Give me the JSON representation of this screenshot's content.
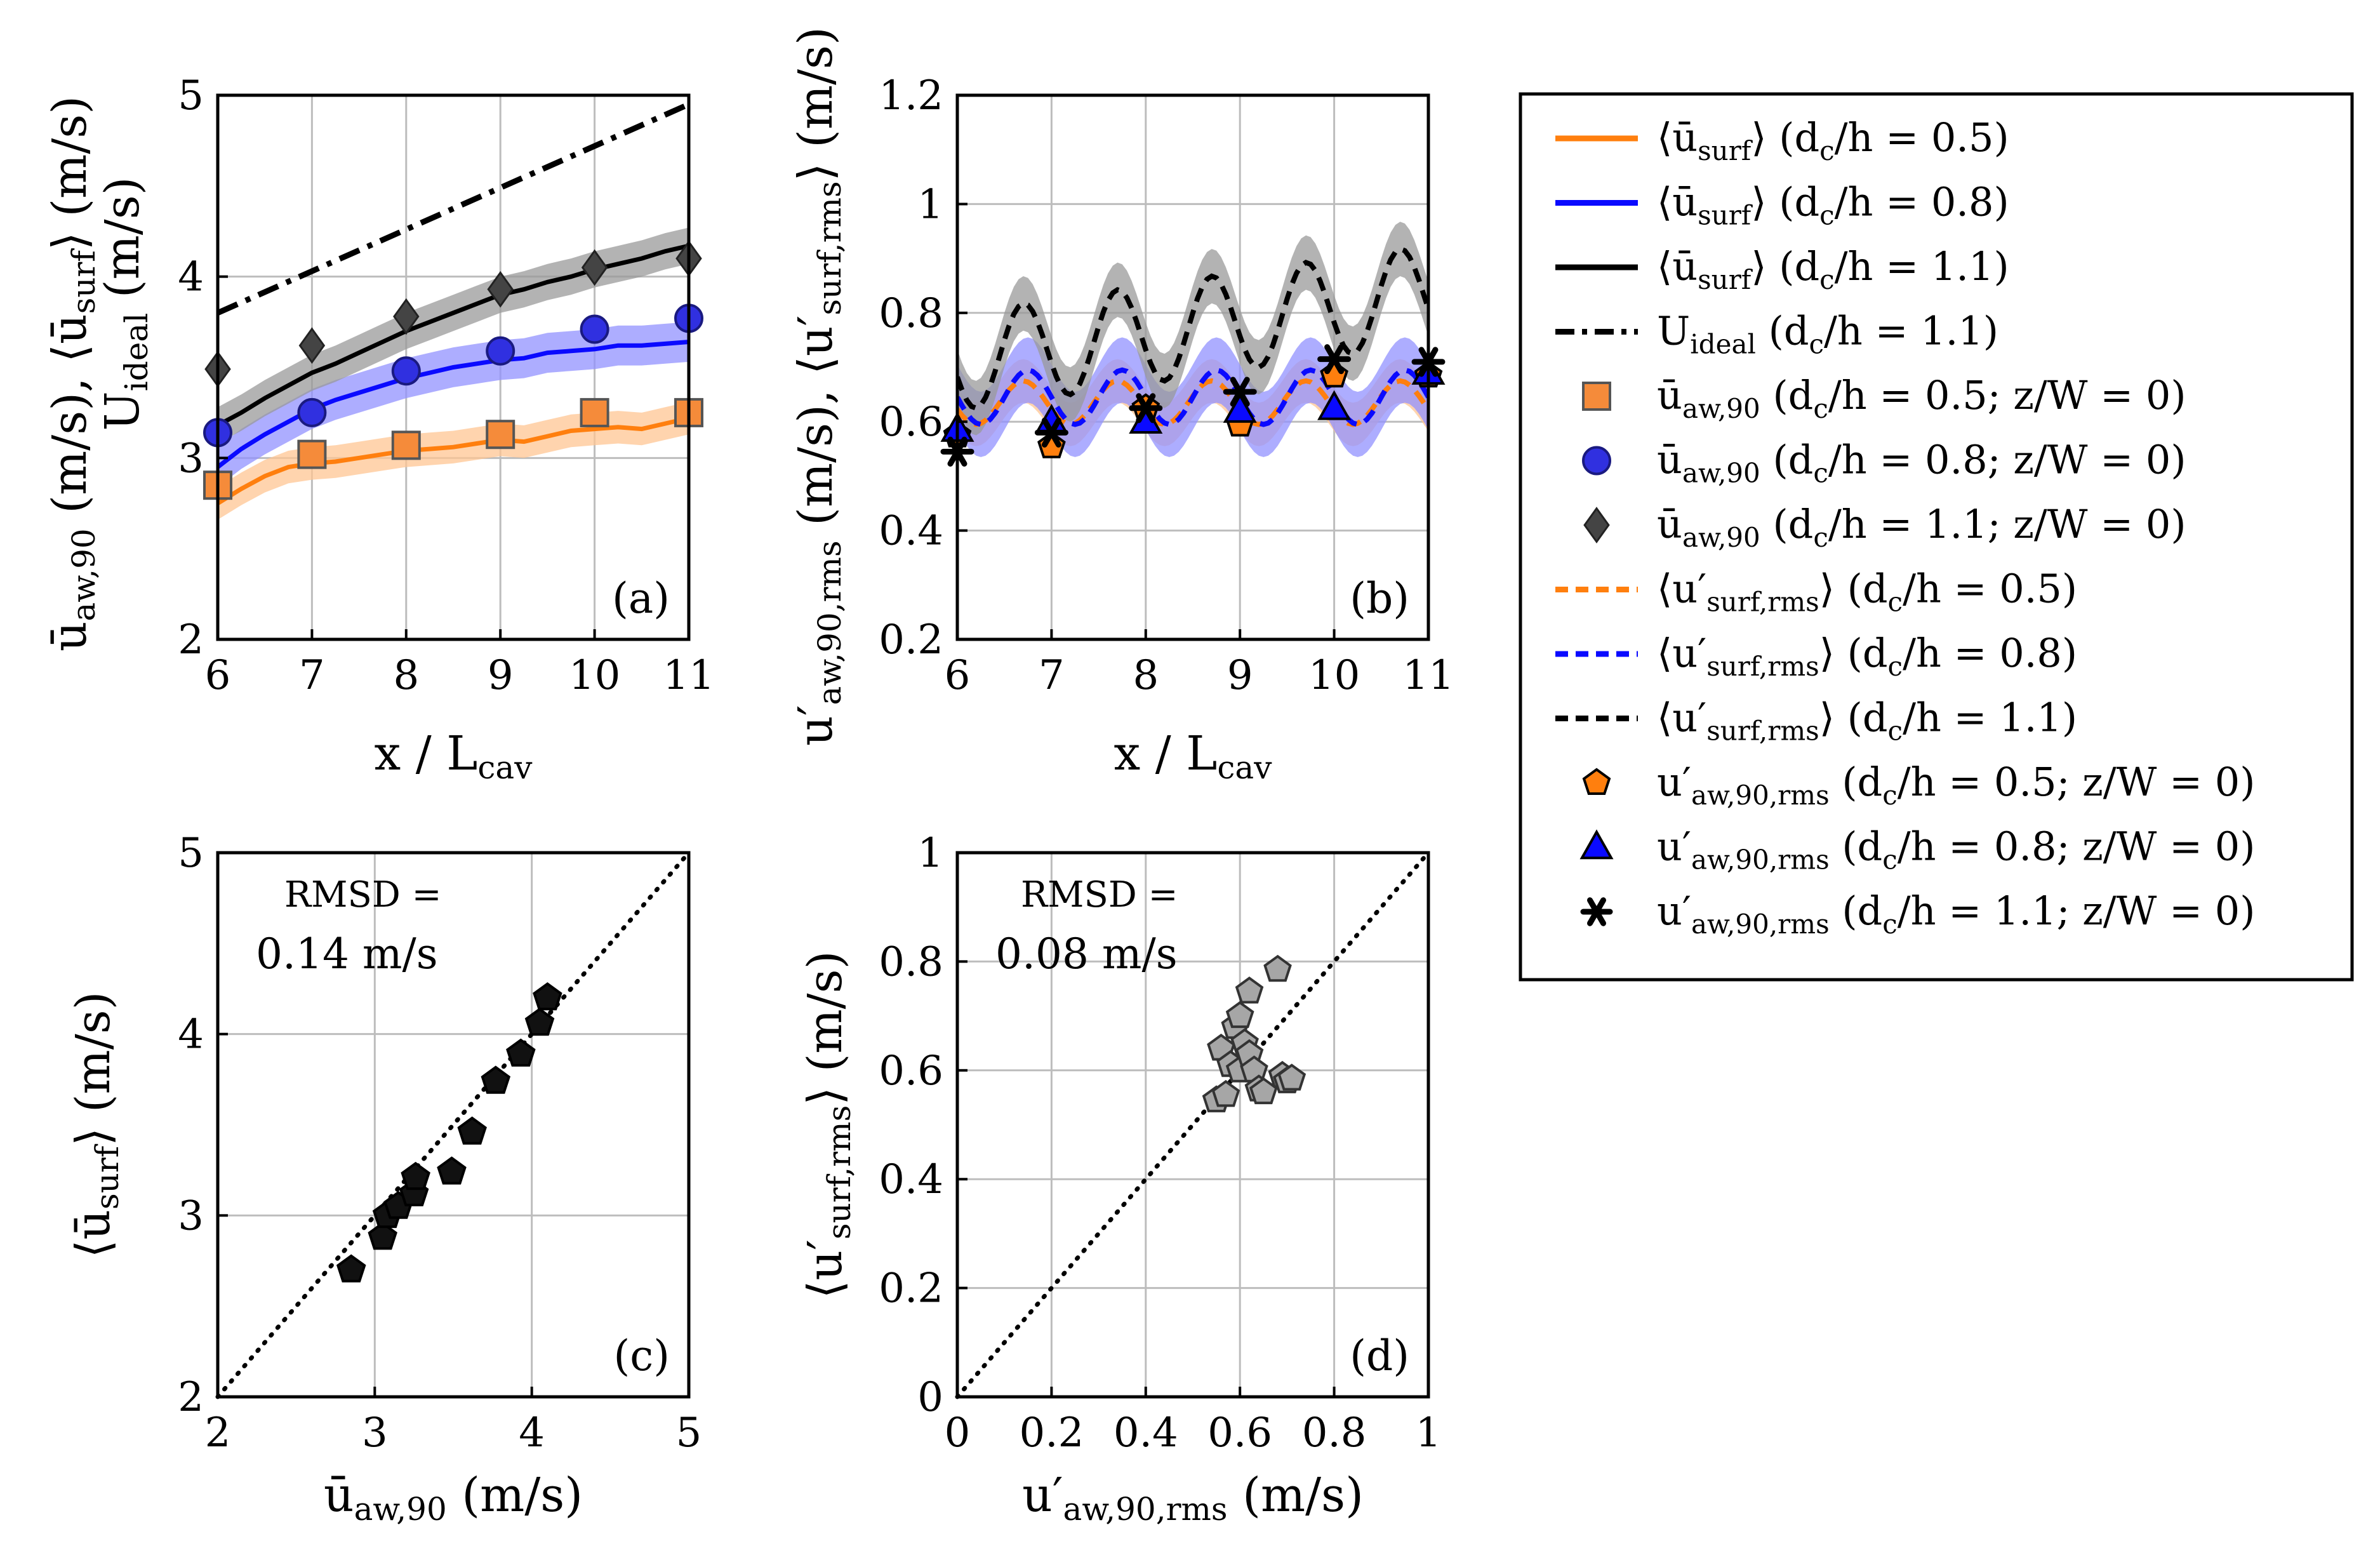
{
  "chart_data": [
    {
      "panel": "a",
      "type": "line",
      "xlabel": "x / L_cav",
      "ylabel_line1": "ū_aw,90 (m/s), ⟨ū_surf⟩ (m/s)",
      "ylabel_line2": "U_ideal (m/s)",
      "xlim": [
        6,
        11
      ],
      "ylim": [
        2,
        5
      ],
      "xticks": [
        "6",
        "7",
        "8",
        "9",
        "10",
        "11"
      ],
      "yticks": [
        "2",
        "3",
        "4",
        "5"
      ],
      "grid": true,
      "series": [
        {
          "name": "⟨ū_surf⟩ (d_c/h = 0.5)",
          "style": "line",
          "color": "#ff7f0e",
          "x": [
            6,
            6.25,
            6.5,
            6.75,
            7,
            7.25,
            7.5,
            7.75,
            8,
            8.25,
            8.5,
            8.75,
            9,
            9.25,
            9.5,
            9.75,
            10,
            10.25,
            10.5,
            10.75,
            11
          ],
          "y": [
            2.75,
            2.83,
            2.9,
            2.95,
            2.97,
            2.98,
            3.0,
            3.02,
            3.04,
            3.05,
            3.06,
            3.08,
            3.1,
            3.09,
            3.12,
            3.15,
            3.16,
            3.17,
            3.16,
            3.19,
            3.22
          ],
          "band": 0.09
        },
        {
          "name": "⟨ū_surf⟩ (d_c/h = 0.8)",
          "style": "line",
          "color": "#0a0aff",
          "x": [
            6,
            6.25,
            6.5,
            6.75,
            7,
            7.25,
            7.5,
            7.75,
            8,
            8.25,
            8.5,
            8.75,
            9,
            9.25,
            9.5,
            9.75,
            10,
            10.25,
            10.5,
            10.75,
            11
          ],
          "y": [
            2.95,
            3.05,
            3.13,
            3.2,
            3.27,
            3.32,
            3.36,
            3.4,
            3.44,
            3.47,
            3.5,
            3.52,
            3.54,
            3.55,
            3.58,
            3.59,
            3.6,
            3.62,
            3.62,
            3.63,
            3.64
          ],
          "band": 0.11
        },
        {
          "name": "⟨ū_surf⟩ (d_c/h = 1.1)",
          "style": "line",
          "color": "#000000",
          "x": [
            6,
            6.25,
            6.5,
            6.75,
            7,
            7.25,
            7.5,
            7.75,
            8,
            8.25,
            8.5,
            8.75,
            9,
            9.25,
            9.5,
            9.75,
            10,
            10.25,
            10.5,
            10.75,
            11
          ],
          "y": [
            3.18,
            3.25,
            3.33,
            3.4,
            3.47,
            3.52,
            3.58,
            3.64,
            3.7,
            3.75,
            3.8,
            3.85,
            3.9,
            3.93,
            3.97,
            4.0,
            4.04,
            4.07,
            4.1,
            4.14,
            4.17
          ],
          "band": 0.1
        },
        {
          "name": "U_ideal (d_c/h = 1.1)",
          "style": "dashdot",
          "color": "#000000",
          "x": [
            6,
            11
          ],
          "y": [
            3.8,
            4.95
          ]
        },
        {
          "name": "ū_aw,90 (d_c/h = 0.5; z/W = 0)",
          "style": "marker",
          "marker": "square",
          "color": "#f58b3a",
          "x": [
            6,
            7,
            8,
            9,
            10,
            11
          ],
          "y": [
            2.85,
            3.02,
            3.07,
            3.13,
            3.25,
            3.25
          ]
        },
        {
          "name": "ū_aw,90 (d_c/h = 0.8; z/W = 0)",
          "style": "marker",
          "marker": "circle",
          "color": "#3030e0",
          "x": [
            6,
            7,
            8,
            9,
            10,
            11
          ],
          "y": [
            3.14,
            3.25,
            3.48,
            3.59,
            3.71,
            3.77
          ]
        },
        {
          "name": "ū_aw,90 (d_c/h = 1.1; z/W = 0)",
          "style": "marker",
          "marker": "diamond",
          "color": "#444444",
          "x": [
            6,
            7,
            8,
            9,
            10,
            11
          ],
          "y": [
            3.49,
            3.62,
            3.78,
            3.93,
            4.05,
            4.1
          ]
        }
      ]
    },
    {
      "panel": "b",
      "type": "line",
      "xlabel": "x / L_cav",
      "ylabel": "u′_aw,90,rms (m/s), ⟨u′_surf,rms⟩ (m/s)",
      "xlim": [
        6,
        11
      ],
      "ylim": [
        0.2,
        1.2
      ],
      "xticks": [
        "6",
        "7",
        "8",
        "9",
        "10",
        "11"
      ],
      "yticks": [
        "0.2",
        "0.4",
        "0.6",
        "0.8",
        "1",
        "1.2"
      ],
      "grid": true,
      "series": [
        {
          "name": "⟨u′_surf,rms⟩ (d_c/h = 0.5)",
          "style": "dashed",
          "color": "#ff7f0e",
          "func": {
            "mean": 0.635,
            "amp": 0.04,
            "period": 1.0,
            "phase": 0.7,
            "trend": 0.0
          },
          "band": 0.04
        },
        {
          "name": "⟨u′_surf,rms⟩ (d_c/h = 0.8)",
          "style": "dashed",
          "color": "#0a0aff",
          "func": {
            "mean": 0.645,
            "amp": 0.05,
            "period": 1.0,
            "phase": 0.75,
            "trend": 0.0
          },
          "band": 0.06
        },
        {
          "name": "⟨u′_surf,rms⟩ (d_c/h = 1.1)",
          "style": "dashed",
          "color": "#000000",
          "func": {
            "mean": 0.71,
            "amp": 0.09,
            "period": 1.0,
            "phase": 0.7,
            "trend": 0.025
          },
          "band": 0.05
        },
        {
          "name": "u′_aw,90,rms (d_c/h = 0.5; z/W = 0)",
          "style": "marker",
          "marker": "pentagon",
          "color": "#ff7f0e",
          "x": [
            6,
            7,
            8,
            9,
            10,
            11
          ],
          "y": [
            0.575,
            0.555,
            0.625,
            0.595,
            0.685,
            0.685
          ]
        },
        {
          "name": "u′_aw,90,rms (d_c/h = 0.8; z/W = 0)",
          "style": "marker",
          "marker": "triangle",
          "color": "#0a0aff",
          "x": [
            6,
            7,
            8,
            9,
            10,
            11
          ],
          "y": [
            0.585,
            0.6,
            0.6,
            0.62,
            0.625,
            0.69
          ]
        },
        {
          "name": "u′_aw,90,rms (d_c/h = 1.1; z/W = 0)",
          "style": "marker",
          "marker": "asterisk",
          "color": "#000000",
          "x": [
            6,
            7,
            8,
            9,
            10,
            11
          ],
          "y": [
            0.545,
            0.58,
            0.625,
            0.655,
            0.715,
            0.71
          ]
        }
      ]
    },
    {
      "panel": "c",
      "type": "scatter",
      "xlabel": "ū_aw,90 (m/s)",
      "ylabel": "⟨ū_surf⟩ (m/s)",
      "xlim": [
        2,
        5
      ],
      "ylim": [
        2,
        5
      ],
      "xticks": [
        "2",
        "3",
        "4",
        "5"
      ],
      "yticks": [
        "2",
        "3",
        "4",
        "5"
      ],
      "grid": true,
      "identity_line": true,
      "rmsd_label": "RMSD =",
      "rmsd_value": "0.14 m/s",
      "x": [
        2.85,
        3.05,
        3.08,
        3.15,
        3.25,
        3.26,
        3.49,
        3.62,
        3.77,
        3.93,
        4.05,
        4.1
      ],
      "y": [
        2.7,
        2.88,
        3.0,
        3.05,
        3.12,
        3.21,
        3.24,
        3.46,
        3.74,
        3.89,
        4.06,
        4.2
      ]
    },
    {
      "panel": "d",
      "type": "scatter",
      "xlabel": "u′_aw,90,rms (m/s)",
      "ylabel": "⟨u′_surf,rms⟩ (m/s)",
      "xlim": [
        0,
        1
      ],
      "ylim": [
        0,
        1
      ],
      "xticks": [
        "0",
        "0.2",
        "0.4",
        "0.6",
        "0.8",
        "1"
      ],
      "yticks": [
        "0",
        "0.2",
        "0.4",
        "0.6",
        "0.8",
        "1"
      ],
      "grid": true,
      "identity_line": true,
      "rmsd_label": "RMSD =",
      "rmsd_value": "0.08 m/s",
      "x": [
        0.55,
        0.57,
        0.56,
        0.58,
        0.59,
        0.6,
        0.6,
        0.61,
        0.62,
        0.62,
        0.63,
        0.64,
        0.65,
        0.68,
        0.69,
        0.7,
        0.71
      ],
      "y": [
        0.545,
        0.555,
        0.64,
        0.61,
        0.68,
        0.6,
        0.7,
        0.65,
        0.63,
        0.745,
        0.6,
        0.565,
        0.56,
        0.785,
        0.59,
        0.58,
        0.585
      ]
    }
  ],
  "panel_tags": {
    "a": "(a)",
    "b": "(b)",
    "c": "(c)",
    "d": "(d)"
  },
  "legend": {
    "entries": [
      {
        "sym": "line",
        "color": "#ff7f0e",
        "main": "⟨ū",
        "sub": "surf",
        "rest": "⟩ (d",
        "sub2": "c",
        "tail": "/h = 0.5)"
      },
      {
        "sym": "line",
        "color": "#0a0aff",
        "main": "⟨ū",
        "sub": "surf",
        "rest": "⟩ (d",
        "sub2": "c",
        "tail": "/h = 0.8)"
      },
      {
        "sym": "line",
        "color": "#000000",
        "main": "⟨ū",
        "sub": "surf",
        "rest": "⟩ (d",
        "sub2": "c",
        "tail": "/h = 1.1)"
      },
      {
        "sym": "dashdot",
        "color": "#000000",
        "main": "U",
        "sub": "ideal",
        "rest": " (d",
        "sub2": "c",
        "tail": "/h = 1.1)"
      },
      {
        "sym": "square",
        "color": "#f58b3a",
        "main": "ū",
        "sub": "aw,90",
        "rest": " (d",
        "sub2": "c",
        "tail": "/h = 0.5; z/W = 0)"
      },
      {
        "sym": "circle",
        "color": "#3030e0",
        "main": "ū",
        "sub": "aw,90",
        "rest": " (d",
        "sub2": "c",
        "tail": "/h = 0.8; z/W = 0)"
      },
      {
        "sym": "diamond",
        "color": "#444444",
        "main": "ū",
        "sub": "aw,90",
        "rest": " (d",
        "sub2": "c",
        "tail": "/h = 1.1; z/W = 0)"
      },
      {
        "sym": "dashed",
        "color": "#ff7f0e",
        "main": "⟨u′",
        "sub": "surf,rms",
        "rest": "⟩ (d",
        "sub2": "c",
        "tail": "/h = 0.5)"
      },
      {
        "sym": "dashed",
        "color": "#0a0aff",
        "main": "⟨u′",
        "sub": "surf,rms",
        "rest": "⟩ (d",
        "sub2": "c",
        "tail": "/h = 0.8)"
      },
      {
        "sym": "dashed",
        "color": "#000000",
        "main": "⟨u′",
        "sub": "surf,rms",
        "rest": "⟩ (d",
        "sub2": "c",
        "tail": "/h = 1.1)"
      },
      {
        "sym": "pentagon",
        "color": "#ff7f0e",
        "main": "u′",
        "sub": "aw,90,rms",
        "rest": " (d",
        "sub2": "c",
        "tail": "/h = 0.5; z/W = 0)"
      },
      {
        "sym": "triangle",
        "color": "#0a0aff",
        "main": "u′",
        "sub": "aw,90,rms",
        "rest": " (d",
        "sub2": "c",
        "tail": "/h = 0.8; z/W = 0)"
      },
      {
        "sym": "asterisk",
        "color": "#000000",
        "main": "u′",
        "sub": "aw,90,rms",
        "rest": " (d",
        "sub2": "c",
        "tail": "/h = 1.1; z/W = 0)"
      }
    ]
  }
}
